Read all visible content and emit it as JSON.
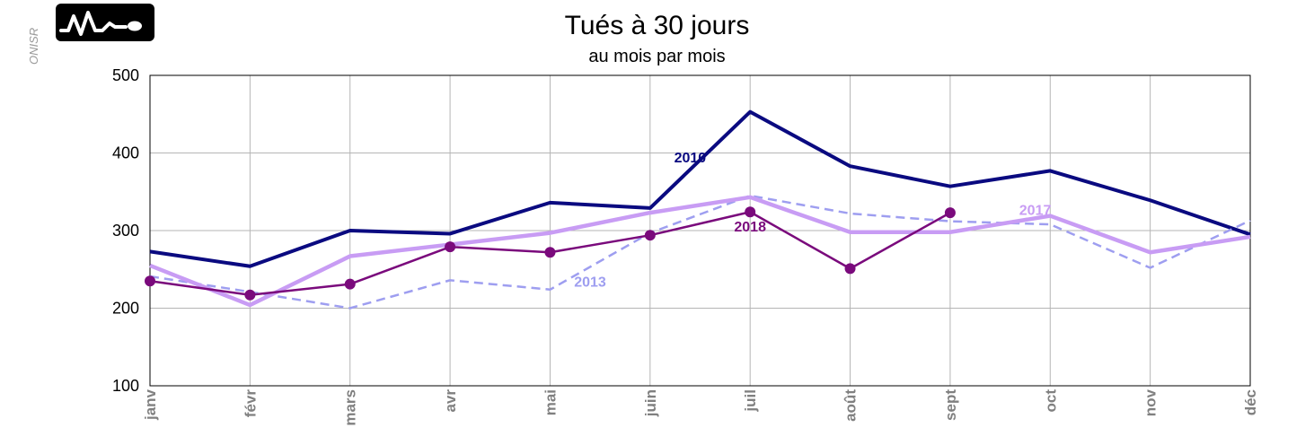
{
  "watermark": "ONISR",
  "logo": {
    "icon": "heartbeat-pulse-icon",
    "color": "#000000"
  },
  "chart_data": {
    "type": "line",
    "title": "Tués à 30 jours",
    "subtitle": "au mois par mois",
    "xlabel": "",
    "ylabel": "",
    "categories": [
      "janv",
      "févr",
      "mars",
      "avr",
      "mai",
      "juin",
      "juil",
      "août",
      "sept",
      "oct",
      "nov",
      "déc"
    ],
    "ylim": [
      100,
      500
    ],
    "yticks": [
      100,
      200,
      300,
      400,
      500
    ],
    "grid": true,
    "series": [
      {
        "name": "2010",
        "color": "#0a0a80",
        "style": "solid",
        "markers": false,
        "values": [
          273,
          254,
          300,
          296,
          336,
          329,
          453,
          383,
          357,
          377,
          339,
          295
        ]
      },
      {
        "name": "2013",
        "color": "#9e9ef0",
        "style": "dashed",
        "markers": false,
        "values": [
          241,
          221,
          200,
          236,
          224,
          297,
          345,
          322,
          312,
          308,
          252,
          313
        ]
      },
      {
        "name": "2017",
        "color": "#c89cf4",
        "style": "solid",
        "markers": false,
        "values": [
          255,
          204,
          267,
          282,
          297,
          323,
          343,
          298,
          298,
          319,
          272,
          292
        ]
      },
      {
        "name": "2018",
        "color": "#7a0a7c",
        "style": "solid",
        "markers": true,
        "values": [
          235,
          217,
          231,
          279,
          272,
          294,
          324,
          251,
          323,
          null,
          null,
          null
        ]
      }
    ]
  }
}
